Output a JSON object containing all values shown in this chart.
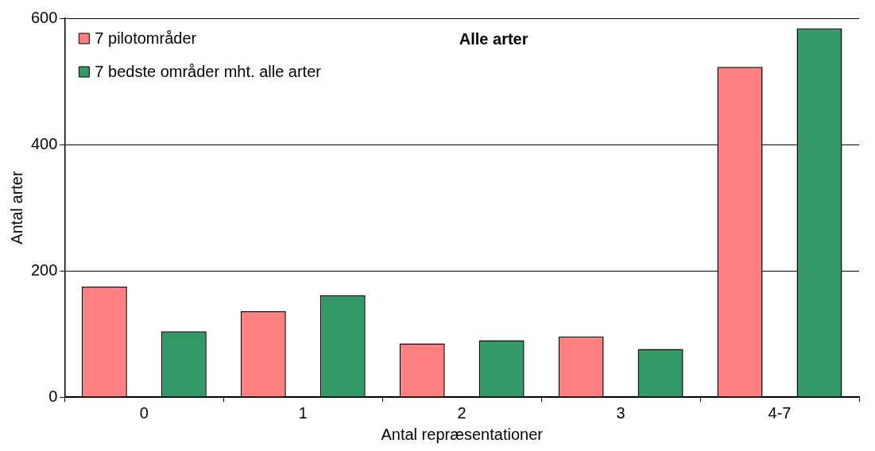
{
  "chart_data": {
    "type": "bar",
    "title": "Alle arter",
    "xlabel": "Antal repræsentationer",
    "ylabel": "Antal arter",
    "categories": [
      "0",
      "1",
      "2",
      "3",
      "4-7"
    ],
    "series": [
      {
        "name": "7 pilotområder",
        "color": "#ff8080",
        "values": [
          175,
          136,
          85,
          96,
          523
        ]
      },
      {
        "name": "7 bedste områder mht. alle arter",
        "color": "#339966",
        "values": [
          104,
          161,
          90,
          76,
          584
        ]
      }
    ],
    "ylim": [
      0,
      600
    ],
    "yticks": [
      0,
      200,
      400,
      600
    ],
    "grid": "y",
    "legend": "top left"
  }
}
